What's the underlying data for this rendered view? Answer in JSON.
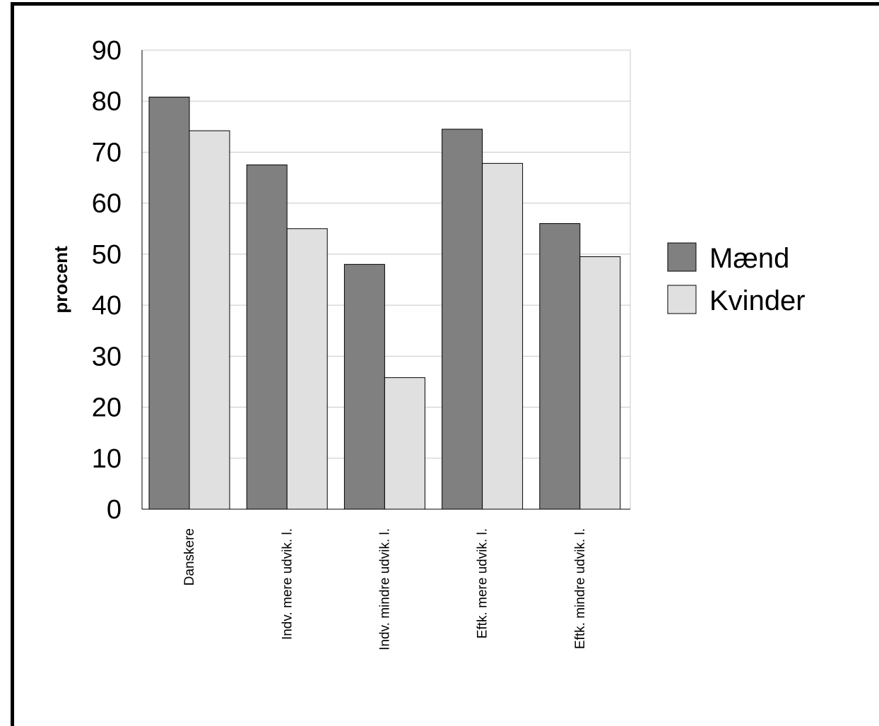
{
  "chart_data": {
    "type": "bar",
    "ylabel": "procent",
    "ylim": [
      0,
      90
    ],
    "yticks": [
      0,
      10,
      20,
      30,
      40,
      50,
      60,
      70,
      80,
      90
    ],
    "grid": true,
    "legend_position": "right",
    "categories": [
      "Danskere",
      "Indv. mere udvik. l.",
      "Indv. mindre udvik. l.",
      "Eftk. mere udvik. l.",
      "Eftk. mindre udvik. l."
    ],
    "series": [
      {
        "name": "Mænd",
        "color": "#808080",
        "values": [
          80.8,
          67.5,
          48.0,
          74.5,
          56.0
        ]
      },
      {
        "name": "Kvinder",
        "color": "#e0e0e0",
        "values": [
          74.2,
          55.0,
          25.8,
          67.8,
          49.5
        ]
      }
    ]
  }
}
